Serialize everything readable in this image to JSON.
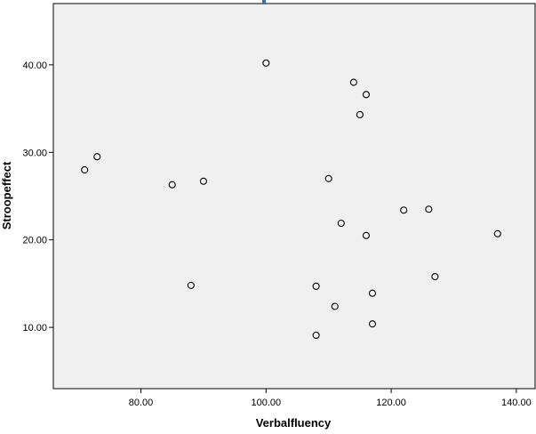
{
  "chart_data": {
    "type": "scatter",
    "title": "",
    "xlabel": "Verbalfluency",
    "ylabel": "Stroopeffect",
    "xlim": [
      66,
      143
    ],
    "ylim": [
      3,
      47
    ],
    "xticks": [
      80,
      100,
      120,
      140
    ],
    "yticks": [
      10,
      20,
      30,
      40
    ],
    "xtick_labels": [
      "80.00",
      "100.00",
      "120.00",
      "140.00"
    ],
    "ytick_labels": [
      "10.00",
      "20.00",
      "30.00",
      "40.00"
    ],
    "grid": false,
    "legend": "none",
    "colors": {
      "plot_background": "#f0f0f0",
      "frame": "#000000",
      "marker": "#000000",
      "indicator": "#3e6fb0"
    },
    "points": [
      {
        "x": 71,
        "y": 28.0
      },
      {
        "x": 73,
        "y": 29.5
      },
      {
        "x": 85,
        "y": 26.3
      },
      {
        "x": 88,
        "y": 14.8
      },
      {
        "x": 90,
        "y": 26.7
      },
      {
        "x": 100,
        "y": 40.2
      },
      {
        "x": 108,
        "y": 14.7
      },
      {
        "x": 108,
        "y": 9.1
      },
      {
        "x": 110,
        "y": 27.0
      },
      {
        "x": 111,
        "y": 12.4
      },
      {
        "x": 112,
        "y": 21.9
      },
      {
        "x": 114,
        "y": 38.0
      },
      {
        "x": 115,
        "y": 34.3
      },
      {
        "x": 116,
        "y": 36.6
      },
      {
        "x": 116,
        "y": 20.5
      },
      {
        "x": 117,
        "y": 13.9
      },
      {
        "x": 117,
        "y": 10.4
      },
      {
        "x": 122,
        "y": 23.4
      },
      {
        "x": 126,
        "y": 23.5
      },
      {
        "x": 127,
        "y": 15.8
      },
      {
        "x": 137,
        "y": 20.7
      }
    ]
  }
}
